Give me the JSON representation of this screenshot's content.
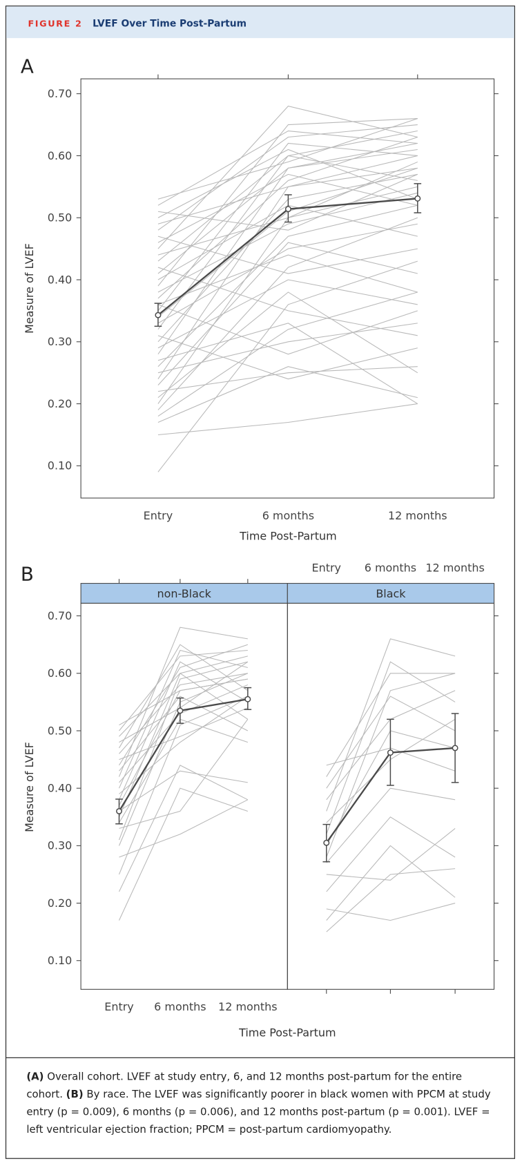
{
  "header": {
    "figure_label": "FIGURE 2",
    "title": "LVEF Over Time Post-Partum"
  },
  "chart_data": [
    {
      "type": "line",
      "panel_label": "A",
      "xlabel": "Time Post-Partum",
      "ylabel": "Measure of LVEF",
      "categories": [
        "Entry",
        "6 months",
        "12 months"
      ],
      "ylim": [
        0.048,
        0.724
      ],
      "yticks": [
        {
          "value": 0.1,
          "label": "0.10"
        },
        {
          "value": 0.2,
          "label": "0.20"
        },
        {
          "value": 0.3,
          "label": "0.30"
        },
        {
          "value": 0.4,
          "label": "0.40"
        },
        {
          "value": 0.5,
          "label": "0.50"
        },
        {
          "value": 0.6,
          "label": "0.60"
        },
        {
          "value": 0.7,
          "label": "0.70"
        }
      ],
      "series": [
        {
          "color": "#b8b8b8",
          "values": [
            0.09,
            0.36,
            0.43
          ]
        },
        {
          "color": "#b8b8b8",
          "values": [
            0.15,
            0.17,
            0.2
          ]
        },
        {
          "color": "#b8b8b8",
          "values": [
            0.17,
            0.26,
            0.21
          ]
        },
        {
          "color": "#b8b8b8",
          "values": [
            0.18,
            0.32,
            0.38
          ]
        },
        {
          "color": "#b8b8b8",
          "values": [
            0.19,
            0.42,
            0.5
          ]
        },
        {
          "color": "#b8b8b8",
          "values": [
            0.2,
            0.5,
            0.55
          ]
        },
        {
          "color": "#b8b8b8",
          "values": [
            0.22,
            0.25,
            0.26
          ]
        },
        {
          "color": "#b8b8b8",
          "values": [
            0.24,
            0.55,
            0.6
          ]
        },
        {
          "color": "#b8b8b8",
          "values": [
            0.25,
            0.3,
            0.33
          ]
        },
        {
          "color": "#b8b8b8",
          "values": [
            0.26,
            0.47,
            0.52
          ]
        },
        {
          "color": "#b8b8b8",
          "values": [
            0.28,
            0.58,
            0.62
          ]
        },
        {
          "color": "#b8b8b8",
          "values": [
            0.29,
            0.4,
            0.36
          ]
        },
        {
          "color": "#b8b8b8",
          "values": [
            0.3,
            0.53,
            0.57
          ]
        },
        {
          "color": "#b8b8b8",
          "values": [
            0.31,
            0.24,
            0.29
          ]
        },
        {
          "color": "#b8b8b8",
          "values": [
            0.32,
            0.6,
            0.64
          ]
        },
        {
          "color": "#b8b8b8",
          "values": [
            0.33,
            0.45,
            0.49
          ]
        },
        {
          "color": "#b8b8b8",
          "values": [
            0.34,
            0.51,
            0.58
          ]
        },
        {
          "color": "#b8b8b8",
          "values": [
            0.35,
            0.62,
            0.6
          ]
        },
        {
          "color": "#b8b8b8",
          "values": [
            0.36,
            0.44,
            0.38
          ]
        },
        {
          "color": "#b8b8b8",
          "values": [
            0.37,
            0.56,
            0.63
          ]
        },
        {
          "color": "#b8b8b8",
          "values": [
            0.38,
            0.49,
            0.54
          ]
        },
        {
          "color": "#b8b8b8",
          "values": [
            0.39,
            0.65,
            0.66
          ]
        },
        {
          "color": "#b8b8b8",
          "values": [
            0.4,
            0.52,
            0.47
          ]
        },
        {
          "color": "#b8b8b8",
          "values": [
            0.41,
            0.58,
            0.61
          ]
        },
        {
          "color": "#b8b8b8",
          "values": [
            0.42,
            0.35,
            0.31
          ]
        },
        {
          "color": "#b8b8b8",
          "values": [
            0.43,
            0.6,
            0.56
          ]
        },
        {
          "color": "#b8b8b8",
          "values": [
            0.44,
            0.5,
            0.59
          ]
        },
        {
          "color": "#b8b8b8",
          "values": [
            0.45,
            0.68,
            0.63
          ]
        },
        {
          "color": "#b8b8b8",
          "values": [
            0.46,
            0.57,
            0.52
          ]
        },
        {
          "color": "#b8b8b8",
          "values": [
            0.47,
            0.41,
            0.45
          ]
        },
        {
          "color": "#b8b8b8",
          "values": [
            0.48,
            0.63,
            0.65
          ]
        },
        {
          "color": "#b8b8b8",
          "values": [
            0.49,
            0.55,
            0.58
          ]
        },
        {
          "color": "#b8b8b8",
          "values": [
            0.5,
            0.61,
            0.53
          ]
        },
        {
          "color": "#b8b8b8",
          "values": [
            0.51,
            0.48,
            0.57
          ]
        },
        {
          "color": "#b8b8b8",
          "values": [
            0.52,
            0.64,
            0.62
          ]
        },
        {
          "color": "#b8b8b8",
          "values": [
            0.53,
            0.59,
            0.66
          ]
        },
        {
          "color": "#b8b8b8",
          "values": [
            0.21,
            0.38,
            0.25
          ]
        },
        {
          "color": "#b8b8b8",
          "values": [
            0.27,
            0.33,
            0.2
          ]
        },
        {
          "color": "#b8b8b8",
          "values": [
            0.23,
            0.46,
            0.41
          ]
        },
        {
          "color": "#b8b8b8",
          "values": [
            0.36,
            0.28,
            0.35
          ]
        },
        {
          "color": "#4a4a4a",
          "values": [
            0.343,
            0.514,
            0.531
          ],
          "error_low": [
            0.325,
            0.493,
            0.508
          ],
          "error_high": [
            0.362,
            0.537,
            0.555
          ]
        }
      ]
    },
    {
      "type": "line",
      "panel_label": "B",
      "strip": "non-Black",
      "xlabel": "Time Post-Partum",
      "ylabel": "Measure of LVEF",
      "categories": [
        "Entry",
        "6 months",
        "12 months"
      ],
      "ylim": [
        0.05,
        0.722
      ],
      "yticks": [
        {
          "value": 0.1,
          "label": "0.10"
        },
        {
          "value": 0.2,
          "label": "0.20"
        },
        {
          "value": 0.3,
          "label": "0.30"
        },
        {
          "value": 0.4,
          "label": "0.40"
        },
        {
          "value": 0.5,
          "label": "0.50"
        },
        {
          "value": 0.6,
          "label": "0.60"
        },
        {
          "value": 0.7,
          "label": "0.70"
        }
      ],
      "series": [
        {
          "color": "#b8b8b8",
          "values": [
            0.17,
            0.4,
            0.36
          ]
        },
        {
          "color": "#b8b8b8",
          "values": [
            0.22,
            0.44,
            0.38
          ]
        },
        {
          "color": "#b8b8b8",
          "values": [
            0.25,
            0.51,
            0.56
          ]
        },
        {
          "color": "#b8b8b8",
          "values": [
            0.28,
            0.32,
            0.38
          ]
        },
        {
          "color": "#b8b8b8",
          "values": [
            0.3,
            0.55,
            0.6
          ]
        },
        {
          "color": "#b8b8b8",
          "values": [
            0.31,
            0.59,
            0.62
          ]
        },
        {
          "color": "#b8b8b8",
          "values": [
            0.33,
            0.36,
            0.52
          ]
        },
        {
          "color": "#b8b8b8",
          "values": [
            0.34,
            0.52,
            0.48
          ]
        },
        {
          "color": "#b8b8b8",
          "values": [
            0.35,
            0.6,
            0.63
          ]
        },
        {
          "color": "#b8b8b8",
          "values": [
            0.36,
            0.43,
            0.41
          ]
        },
        {
          "color": "#b8b8b8",
          "values": [
            0.37,
            0.57,
            0.59
          ]
        },
        {
          "color": "#b8b8b8",
          "values": [
            0.38,
            0.62,
            0.55
          ]
        },
        {
          "color": "#b8b8b8",
          "values": [
            0.39,
            0.48,
            0.56
          ]
        },
        {
          "color": "#b8b8b8",
          "values": [
            0.4,
            0.64,
            0.61
          ]
        },
        {
          "color": "#b8b8b8",
          "values": [
            0.41,
            0.53,
            0.58
          ]
        },
        {
          "color": "#b8b8b8",
          "values": [
            0.42,
            0.68,
            0.66
          ]
        },
        {
          "color": "#b8b8b8",
          "values": [
            0.43,
            0.56,
            0.5
          ]
        },
        {
          "color": "#b8b8b8",
          "values": [
            0.44,
            0.61,
            0.65
          ]
        },
        {
          "color": "#b8b8b8",
          "values": [
            0.45,
            0.49,
            0.54
          ]
        },
        {
          "color": "#b8b8b8",
          "values": [
            0.46,
            0.58,
            0.6
          ]
        },
        {
          "color": "#b8b8b8",
          "values": [
            0.47,
            0.65,
            0.57
          ]
        },
        {
          "color": "#b8b8b8",
          "values": [
            0.48,
            0.54,
            0.62
          ]
        },
        {
          "color": "#b8b8b8",
          "values": [
            0.49,
            0.6,
            0.52
          ]
        },
        {
          "color": "#b8b8b8",
          "values": [
            0.5,
            0.63,
            0.64
          ]
        },
        {
          "color": "#b8b8b8",
          "values": [
            0.51,
            0.57,
            0.59
          ]
        },
        {
          "color": "#4a4a4a",
          "values": [
            0.36,
            0.535,
            0.555
          ],
          "error_low": [
            0.338,
            0.513,
            0.537
          ],
          "error_high": [
            0.381,
            0.557,
            0.575
          ]
        }
      ]
    },
    {
      "type": "line",
      "strip": "Black",
      "categories": [
        "Entry",
        "6 months",
        "12 months"
      ],
      "ylim": [
        0.05,
        0.722
      ],
      "yticks": [
        0.1,
        0.2,
        0.3,
        0.4,
        0.5,
        0.6,
        0.7
      ],
      "series": [
        {
          "color": "#b8b8b8",
          "values": [
            0.15,
            0.25,
            0.26
          ]
        },
        {
          "color": "#b8b8b8",
          "values": [
            0.17,
            0.3,
            0.21
          ]
        },
        {
          "color": "#b8b8b8",
          "values": [
            0.19,
            0.17,
            0.2
          ]
        },
        {
          "color": "#b8b8b8",
          "values": [
            0.22,
            0.35,
            0.28
          ]
        },
        {
          "color": "#b8b8b8",
          "values": [
            0.25,
            0.24,
            0.33
          ]
        },
        {
          "color": "#b8b8b8",
          "values": [
            0.27,
            0.4,
            0.38
          ]
        },
        {
          "color": "#b8b8b8",
          "values": [
            0.28,
            0.57,
            0.6
          ]
        },
        {
          "color": "#b8b8b8",
          "values": [
            0.3,
            0.5,
            0.47
          ]
        },
        {
          "color": "#b8b8b8",
          "values": [
            0.32,
            0.62,
            0.55
          ]
        },
        {
          "color": "#b8b8b8",
          "values": [
            0.34,
            0.45,
            0.52
          ]
        },
        {
          "color": "#b8b8b8",
          "values": [
            0.36,
            0.66,
            0.63
          ]
        },
        {
          "color": "#b8b8b8",
          "values": [
            0.38,
            0.52,
            0.57
          ]
        },
        {
          "color": "#b8b8b8",
          "values": [
            0.4,
            0.56,
            0.5
          ]
        },
        {
          "color": "#b8b8b8",
          "values": [
            0.42,
            0.6,
            0.6
          ]
        },
        {
          "color": "#b8b8b8",
          "values": [
            0.44,
            0.47,
            0.43
          ]
        },
        {
          "color": "#4a4a4a",
          "values": [
            0.305,
            0.462,
            0.47
          ],
          "error_low": [
            0.272,
            0.405,
            0.41
          ],
          "error_high": [
            0.337,
            0.52,
            0.53
          ]
        }
      ]
    }
  ],
  "caption": {
    "a_label": "(A)",
    "a_text": "Overall cohort. LVEF at study entry, 6, and 12 months post-partum for the entire cohort.",
    "b_label": "(B)",
    "b_text": "By race. The LVEF was significantly poorer in black women with PPCM at study entry (p = 0.009), 6 months (p = 0.006), and 12 months post-partum (p = 0.001). LVEF = left ventricular ejection fraction; PPCM = post-partum cardiomyopathy."
  }
}
